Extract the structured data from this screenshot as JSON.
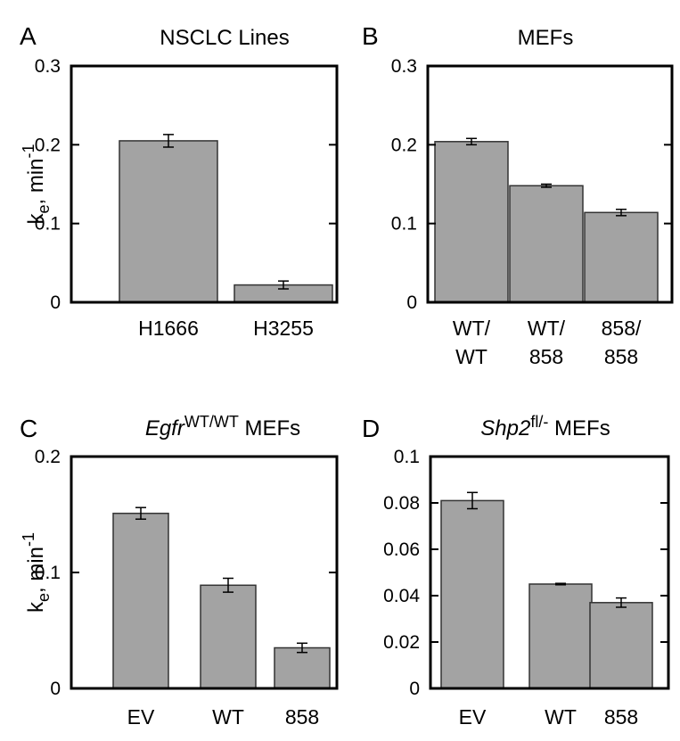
{
  "chart_data": [
    {
      "type": "bar",
      "panel": "A",
      "title": "NSCLC Lines",
      "ylabel": "k",
      "ylabel_sub": "e",
      "ylabel_rest": ", min",
      "ylabel_sup": "-1",
      "ylim": [
        0,
        0.3
      ],
      "yticks": [
        "0",
        "0.1",
        "0.2",
        "0.3"
      ],
      "categories": [
        [
          "H1666"
        ],
        [
          "H3255"
        ]
      ],
      "values": [
        0.205,
        0.022
      ],
      "errors": [
        0.008,
        0.005
      ]
    },
    {
      "type": "bar",
      "panel": "B",
      "title": "MEFs",
      "ylabel": "",
      "ylim": [
        0,
        0.3
      ],
      "yticks": [
        "0",
        "0.1",
        "0.2",
        "0.3"
      ],
      "categories": [
        [
          "WT/",
          "WT"
        ],
        [
          "WT/",
          "858"
        ],
        [
          "858/",
          "858"
        ]
      ],
      "values": [
        0.204,
        0.148,
        0.114
      ],
      "errors": [
        0.004,
        0.002,
        0.004
      ]
    },
    {
      "type": "bar",
      "panel": "C",
      "title_italic": "Egfr",
      "title_sup": "WT/WT",
      "title_rest": " MEFs",
      "ylabel": "k",
      "ylabel_sub": "e",
      "ylabel_rest": ", min",
      "ylabel_sup": "-1",
      "ylim": [
        0,
        0.2
      ],
      "yticks": [
        "0",
        "0.1",
        "0.2"
      ],
      "categories": [
        [
          "EV"
        ],
        [
          "WT"
        ],
        [
          "858"
        ]
      ],
      "values": [
        0.151,
        0.089,
        0.035
      ],
      "errors": [
        0.005,
        0.006,
        0.004
      ]
    },
    {
      "type": "bar",
      "panel": "D",
      "title_italic": "Shp2",
      "title_sup": "fl/-",
      "title_rest": " MEFs",
      "ylabel": "",
      "ylim": [
        0,
        0.1
      ],
      "yticks": [
        "0",
        "0.02",
        "0.04",
        "0.06",
        "0.08",
        "0.1"
      ],
      "categories": [
        [
          "EV"
        ],
        [
          "WT"
        ],
        [
          "858"
        ]
      ],
      "values": [
        0.081,
        0.045,
        0.037
      ],
      "errors": [
        0.0035,
        0.0003,
        0.002
      ]
    }
  ]
}
